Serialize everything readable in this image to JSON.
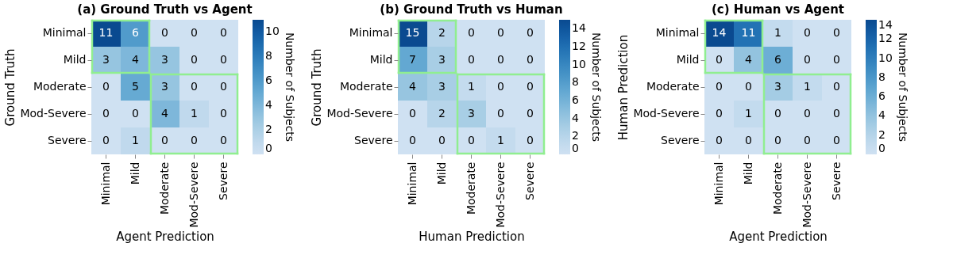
{
  "chart_data": [
    {
      "type": "heatmap",
      "title": "(a) Ground Truth vs Agent",
      "xlabel": "Agent Prediction",
      "ylabel": "Ground Truth",
      "clabel": "Number of Subjects",
      "categories": [
        "Minimal",
        "Mild",
        "Moderate",
        "Mod-Severe",
        "Severe"
      ],
      "y_categories": [
        "Minimal",
        "Mild",
        "Moderate",
        "Mod-Severe",
        "Severe"
      ],
      "cells": [
        [
          11,
          6,
          0,
          0,
          0
        ],
        [
          3,
          4,
          3,
          0,
          0
        ],
        [
          0,
          5,
          3,
          0,
          0
        ],
        [
          0,
          0,
          4,
          1,
          0
        ],
        [
          0,
          1,
          0,
          0,
          0
        ]
      ],
      "clim": [
        0,
        11
      ],
      "cticks": [
        0,
        2,
        4,
        6,
        8,
        10
      ],
      "data_labels": true
    },
    {
      "type": "heatmap",
      "title": "(b) Ground Truth vs Human",
      "xlabel": "Human Prediction",
      "ylabel": "Ground Truth",
      "clabel": "Number of Subjects",
      "categories": [
        "Minimal",
        "Mild",
        "Moderate",
        "Mod-Severe",
        "Severe"
      ],
      "y_categories": [
        "Minimal",
        "Mild",
        "Moderate",
        "Mod-Severe",
        "Severe"
      ],
      "cells": [
        [
          15,
          2,
          0,
          0,
          0
        ],
        [
          7,
          3,
          0,
          0,
          0
        ],
        [
          4,
          3,
          1,
          0,
          0
        ],
        [
          0,
          2,
          3,
          0,
          0
        ],
        [
          0,
          0,
          0,
          1,
          0
        ]
      ],
      "clim": [
        0,
        15
      ],
      "cticks": [
        0,
        2,
        4,
        6,
        8,
        10,
        12,
        14
      ],
      "data_labels": true
    },
    {
      "type": "heatmap",
      "title": "(c) Human vs Agent",
      "xlabel": "Agent Prediction",
      "ylabel": "Human Prediction",
      "clabel": "Number of Subjects",
      "categories": [
        "Minimal",
        "Mild",
        "Moderate",
        "Mod-Severe",
        "Severe"
      ],
      "y_categories": [
        "Minimal",
        "Mild",
        "Moderate",
        "Mod-Severe",
        "Severe"
      ],
      "cells": [
        [
          14,
          11,
          1,
          0,
          0
        ],
        [
          0,
          4,
          6,
          0,
          0
        ],
        [
          0,
          0,
          3,
          1,
          0
        ],
        [
          0,
          1,
          0,
          0,
          0
        ],
        [
          0,
          0,
          0,
          0,
          0
        ]
      ],
      "clim": [
        0,
        14
      ],
      "cticks": [
        0,
        2,
        4,
        6,
        8,
        10,
        12,
        14
      ],
      "data_labels": true
    }
  ]
}
